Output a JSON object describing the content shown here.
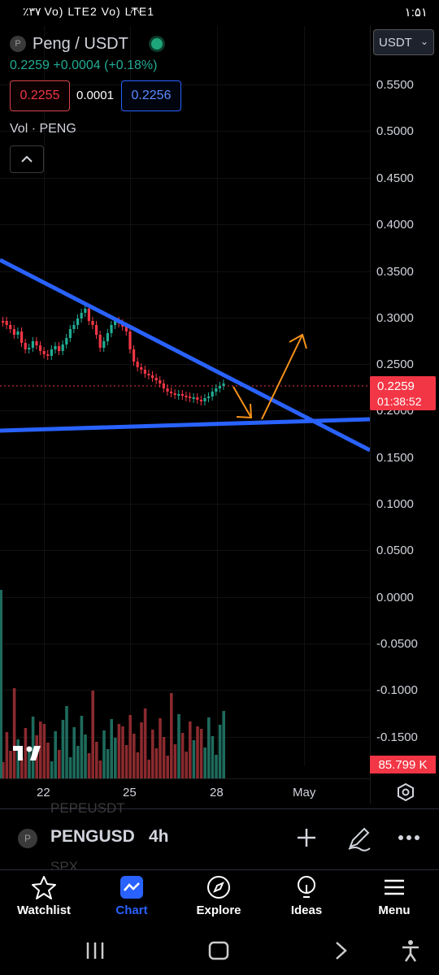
{
  "status_bar": {
    "left": "٪۳۷ Vo) LTE2 Vo) LTE1",
    "time": "۱:۵۱"
  },
  "symbol": {
    "badge": "P",
    "title": "Peng / USDT",
    "last": "0.2259",
    "change": "+0.0004 (+0.18%)"
  },
  "quote": {
    "bid": "0.2255",
    "spread": "0.0001",
    "ask": "0.2256"
  },
  "volume_label": "Vol · PENG",
  "currency_select": "USDT",
  "price_axis": [
    "0.5500",
    "0.5000",
    "0.4500",
    "0.4000",
    "0.3500",
    "0.3000",
    "0.2500",
    "0.2000",
    "0.1500",
    "0.1000",
    "0.0500",
    "0.0000",
    "-0.0500",
    "-0.1000",
    "-0.1500"
  ],
  "last_price_tag": {
    "price": "0.2259",
    "countdown": "01:38:52"
  },
  "volume_tag": "85.799 K",
  "time_axis": [
    "22",
    "25",
    "28",
    "May"
  ],
  "toolbar": {
    "badge": "P",
    "symbol": "PENGUSD",
    "timeframe": "4h",
    "ghost_above": "PEPEUSDT",
    "ghost_below": "SPX"
  },
  "nav": [
    {
      "label": "Watchlist",
      "icon": "star-icon"
    },
    {
      "label": "Chart",
      "icon": "chart-icon",
      "active": true
    },
    {
      "label": "Explore",
      "icon": "compass-icon"
    },
    {
      "label": "Ideas",
      "icon": "lightbulb-icon"
    },
    {
      "label": "Menu",
      "icon": "menu-icon"
    }
  ],
  "colors": {
    "up": "#22ab94",
    "down": "#f23645",
    "trendline": "#2962ff",
    "annotation": "#f7931a"
  }
}
